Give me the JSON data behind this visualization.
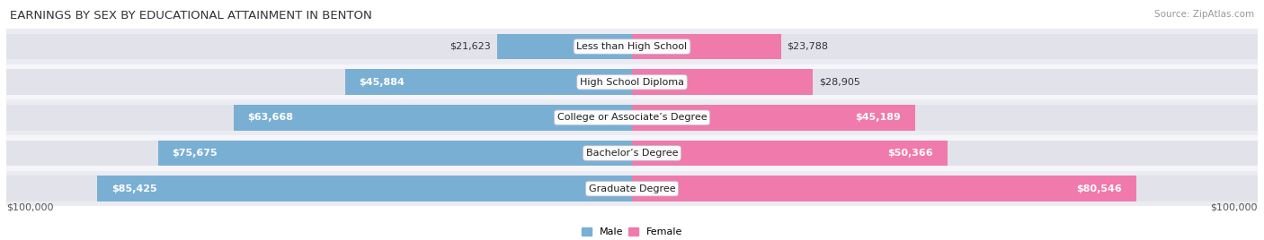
{
  "title": "EARNINGS BY SEX BY EDUCATIONAL ATTAINMENT IN BENTON",
  "source": "Source: ZipAtlas.com",
  "categories": [
    "Less than High School",
    "High School Diploma",
    "College or Associate’s Degree",
    "Bachelor’s Degree",
    "Graduate Degree"
  ],
  "male_values": [
    21623,
    45884,
    63668,
    75675,
    85425
  ],
  "female_values": [
    23788,
    28905,
    45189,
    50366,
    80546
  ],
  "male_color": "#7AAFD4",
  "female_color": "#F07AAB",
  "bar_bg_color": "#E2E2EA",
  "row_bg_colors": [
    "#EBEBF2",
    "#F5F5FA"
  ],
  "max_value": 100000,
  "xlabel_left": "$100,000",
  "xlabel_right": "$100,000",
  "title_fontsize": 9.5,
  "source_fontsize": 7.5,
  "label_fontsize": 8.0,
  "value_fontsize": 8.0,
  "legend_male": "Male",
  "legend_female": "Female"
}
